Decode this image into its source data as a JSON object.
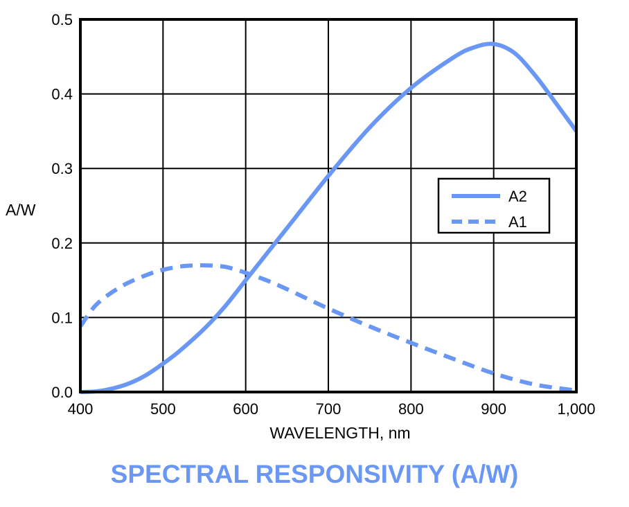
{
  "chart_data": {
    "type": "line",
    "title": "SPECTRAL RESPONSIVITY (A/W)",
    "xlabel": "WAVELENGTH, nm",
    "ylabel": "A/W",
    "xlim": [
      400,
      1000
    ],
    "ylim": [
      0,
      0.5
    ],
    "x_ticks": [
      400,
      500,
      600,
      700,
      800,
      900,
      1000
    ],
    "x_tick_labels": [
      "400",
      "500",
      "600",
      "700",
      "800",
      "900",
      "1,000"
    ],
    "y_ticks": [
      0,
      0.1,
      0.2,
      0.3,
      0.4,
      0.5
    ],
    "y_tick_labels": [
      "0.0",
      "0.1",
      "0.2",
      "0.3",
      "0.4",
      "0.5"
    ],
    "grid": true,
    "legend_position": "middle-right",
    "color": "#6a97f4",
    "series": [
      {
        "name": "A2",
        "style": "solid",
        "x": [
          400,
          420,
          440,
          460,
          480,
          500,
          520,
          550,
          575,
          600,
          625,
          650,
          700,
          750,
          800,
          850,
          875,
          900,
          925,
          950,
          975,
          1000
        ],
        "y": [
          0.0,
          0.001,
          0.005,
          0.012,
          0.023,
          0.038,
          0.055,
          0.085,
          0.115,
          0.15,
          0.185,
          0.22,
          0.29,
          0.355,
          0.408,
          0.448,
          0.462,
          0.467,
          0.455,
          0.425,
          0.388,
          0.35
        ]
      },
      {
        "name": "A1",
        "style": "dashed",
        "x": [
          400,
          420,
          450,
          480,
          500,
          525,
          550,
          575,
          600,
          625,
          650,
          700,
          750,
          800,
          850,
          900,
          950,
          1000
        ],
        "y": [
          0.088,
          0.118,
          0.142,
          0.157,
          0.164,
          0.169,
          0.17,
          0.168,
          0.16,
          0.15,
          0.138,
          0.112,
          0.088,
          0.066,
          0.045,
          0.025,
          0.01,
          0.002
        ]
      }
    ]
  }
}
